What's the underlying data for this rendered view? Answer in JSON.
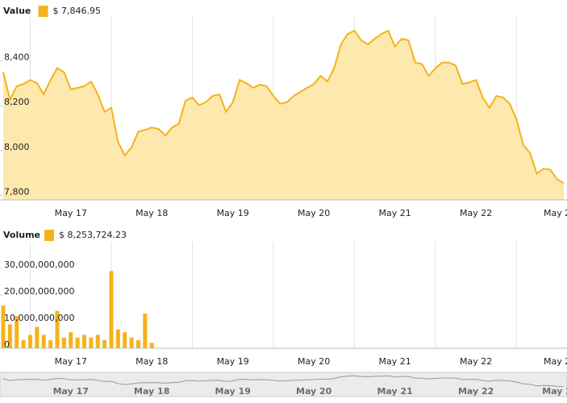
{
  "chart_data": [
    {
      "type": "area",
      "title": "Value",
      "legend_value": "$ 7,846.95",
      "categories": [
        null,
        null,
        null,
        null,
        null,
        null,
        null,
        null,
        null,
        null,
        "May 17",
        null,
        null,
        null,
        null,
        null,
        null,
        null,
        null,
        null,
        null,
        null,
        "May 18",
        null,
        null,
        null,
        null,
        null,
        null,
        null,
        null,
        null,
        null,
        null,
        "May 19",
        null,
        null,
        null,
        null,
        null,
        null,
        null,
        null,
        null,
        null,
        null,
        "May 20",
        null,
        null,
        null,
        null,
        null,
        null,
        null,
        null,
        null,
        null,
        null,
        "May 21",
        null,
        null,
        null,
        null,
        null,
        null,
        null,
        null,
        null,
        null,
        null,
        "May 22",
        null,
        null,
        null,
        null,
        null,
        null,
        null,
        null,
        null,
        null,
        null,
        "May 2",
        null
      ],
      "series": [
        {
          "name": "Value",
          "color": "#f5b21b",
          "values": [
            8350,
            8227,
            8287,
            8297,
            8315,
            8301,
            8251,
            8315,
            8368,
            8350,
            8273,
            8280,
            8287,
            8308,
            8251,
            8173,
            8191,
            8039,
            7979,
            8014,
            8085,
            8092,
            8103,
            8096,
            8067,
            8103,
            8120,
            8223,
            8237,
            8202,
            8216,
            8244,
            8251,
            8173,
            8216,
            8315,
            8301,
            8280,
            8294,
            8287,
            8244,
            8209,
            8216,
            8244,
            8262,
            8280,
            8297,
            8333,
            8308,
            8368,
            8474,
            8520,
            8535,
            8492,
            8474,
            8499,
            8520,
            8535,
            8464,
            8499,
            8492,
            8393,
            8386,
            8333,
            8368,
            8393,
            8393,
            8379,
            8297,
            8304,
            8315,
            8237,
            8191,
            8244,
            8237,
            8209,
            8138,
            8025,
            7989,
            7897,
            7919,
            7915,
            7872,
            7854
          ]
        }
      ],
      "ylim": [
        7780,
        8600
      ],
      "yticks": [
        {
          "value": 7800,
          "label": "7,800"
        },
        {
          "value": 8000,
          "label": "8,000"
        },
        {
          "value": 8200,
          "label": "8,200"
        },
        {
          "value": 8400,
          "label": "8,400"
        }
      ],
      "grid": true
    },
    {
      "type": "bar",
      "title": "Volume",
      "legend_value": "$ 8,253,724.23",
      "categories": [
        null,
        null,
        null,
        null,
        null,
        null,
        null,
        null,
        null,
        null,
        "May 17",
        null,
        null,
        null,
        null,
        null,
        null,
        null,
        null,
        null,
        null,
        null,
        "May 18",
        null,
        null,
        null,
        null,
        null,
        null,
        null,
        null,
        null,
        null,
        null,
        "May 19",
        null,
        null,
        null,
        null,
        null,
        null,
        null,
        null,
        null,
        null,
        null,
        "May 20",
        null,
        null,
        null,
        null,
        null,
        null,
        null,
        null,
        null,
        null,
        null,
        "May 21",
        null,
        null,
        null,
        null,
        null,
        null,
        null,
        null,
        null,
        null,
        null,
        "May 22",
        null,
        null,
        null,
        null,
        null,
        null,
        null,
        null,
        null,
        null,
        null,
        "May 2",
        null
      ],
      "series": [
        {
          "name": "Volume",
          "color": "#f5b21b",
          "values": [
            16000000000,
            9000000000,
            12000000000,
            3000000000,
            5000000000,
            8000000000,
            5000000000,
            3000000000,
            14000000000,
            4000000000,
            6000000000,
            4000000000,
            5000000000,
            4000000000,
            5000000000,
            3000000000,
            29000000000,
            7000000000,
            6000000000,
            4000000000,
            3000000000,
            13000000000,
            2000000000,
            null,
            null,
            null,
            null,
            null,
            null,
            null,
            null,
            null,
            null,
            null,
            null,
            null,
            null,
            null,
            null,
            null,
            null,
            null,
            null,
            null,
            null,
            null,
            null,
            null,
            null,
            null,
            null,
            null,
            null,
            null,
            null,
            null,
            null,
            null,
            null,
            null,
            null,
            null,
            null,
            null,
            null,
            null,
            null,
            null,
            null,
            null,
            null,
            null,
            null,
            null,
            null,
            null,
            null,
            null,
            null,
            null,
            null,
            null,
            null,
            null
          ]
        }
      ],
      "ylim": [
        0,
        40000000000
      ],
      "yticks": [
        0,
        {
          "value": 10000000000,
          "label": "10,000,000,000"
        },
        {
          "value": 20000000000,
          "label": "20,000,000,000"
        },
        {
          "value": 30000000000,
          "label": "30,000,000,000"
        }
      ],
      "grid": true
    }
  ],
  "navigator": {
    "labels": [
      "May 17",
      "May 18",
      "May 19",
      "May 20",
      "May 21",
      "May 22",
      "May 2"
    ]
  }
}
